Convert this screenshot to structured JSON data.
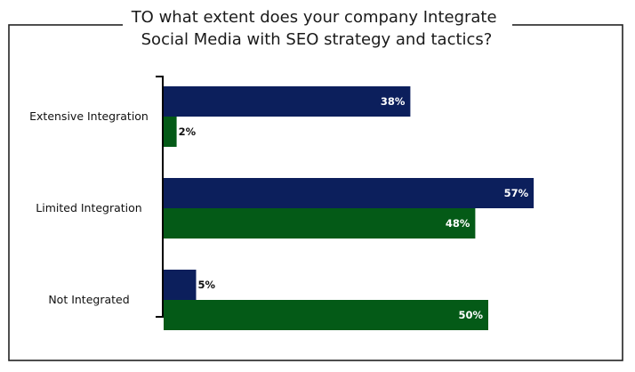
{
  "chart_data": {
    "type": "bar",
    "orientation": "horizontal",
    "title": [
      "TO what extent does your company Integrate",
      "Social Media with SEO strategy and tactics?"
    ],
    "categories": [
      "Extensive Integration",
      "Limited Integration",
      "Not Integrated"
    ],
    "series": [
      {
        "values": [
          38,
          57,
          5
        ],
        "color": "#0c1f5c",
        "labels": [
          "38%",
          "57%",
          "5%"
        ]
      },
      {
        "values": [
          2,
          48,
          50
        ],
        "color": "#045a17",
        "labels": [
          "2%",
          "48%",
          "50%"
        ]
      }
    ],
    "xlim": [
      0,
      100
    ],
    "grid": false,
    "legend": "none"
  }
}
